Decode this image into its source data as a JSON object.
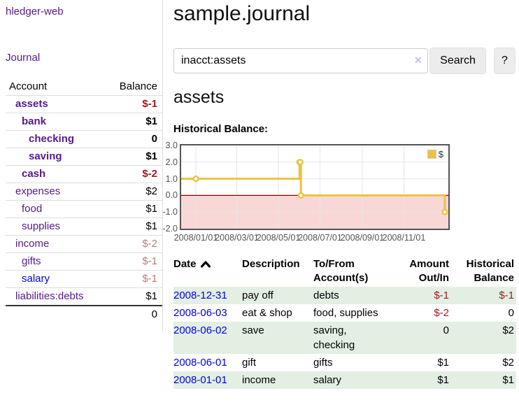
{
  "colors": {
    "link_purple": "#551a8b",
    "link_blue": "#0000ee",
    "negative_strong": "#9d1a1a",
    "negative_muted": "#b97c78",
    "row_green": "#e2efe2",
    "chart_line_gold": "#edc240"
  },
  "sidebar": {
    "brand": "hledger-web",
    "nav": {
      "journal": "Journal"
    },
    "accounts_table": {
      "headers": {
        "account": "Account",
        "balance": "Balance"
      },
      "rows": [
        {
          "name": "assets",
          "balance": "$-1",
          "depth": 1,
          "bold": true
        },
        {
          "name": "bank",
          "balance": "$1",
          "depth": 2,
          "bold": true
        },
        {
          "name": "checking",
          "balance": "0",
          "depth": 3,
          "bold": true
        },
        {
          "name": "saving",
          "balance": "$1",
          "depth": 3,
          "bold": true
        },
        {
          "name": "cash",
          "balance": "$-2",
          "depth": 2,
          "bold": true
        },
        {
          "name": "expenses",
          "balance": "$2",
          "depth": 1,
          "bold": false
        },
        {
          "name": "food",
          "balance": "$1",
          "depth": 2,
          "bold": false
        },
        {
          "name": "supplies",
          "balance": "$1",
          "depth": 2,
          "bold": false
        },
        {
          "name": "income",
          "balance": "$-2",
          "depth": 1,
          "bold": false
        },
        {
          "name": "gifts",
          "balance": "$-1",
          "depth": 2,
          "bold": false
        },
        {
          "name": "salary",
          "balance": "$-1",
          "depth": 2,
          "bold": false,
          "unvisited": true
        },
        {
          "name": "liabilities:debts",
          "balance": "$1",
          "depth": 1,
          "bold": false
        }
      ],
      "total": "0"
    }
  },
  "main": {
    "title": "sample.journal",
    "search": {
      "value": "inacct:assets",
      "clear_icon": "×",
      "search_button": "Search",
      "help_button": "?"
    },
    "account_heading": "assets",
    "chart_heading": "Historical Balance:"
  },
  "chart_data": {
    "type": "line",
    "title": "Historical Balance:",
    "step": true,
    "series": [
      {
        "name": "$",
        "color": "#edc240",
        "points": [
          [
            "2008/01/01",
            1
          ],
          [
            "2008/06/01",
            2
          ],
          [
            "2008/06/02",
            2
          ],
          [
            "2008/06/03",
            0
          ],
          [
            "2008/12/31",
            -1
          ]
        ]
      }
    ],
    "xticks": [
      "2008/01/01",
      "2008/03/01",
      "2008/05/01",
      "2008/07/01",
      "2008/09/01",
      "2008/11/01"
    ],
    "yticks": [
      3.0,
      2.0,
      1.0,
      0.0,
      -1.0,
      -2.0
    ],
    "ylim": [
      -2,
      3
    ],
    "grid": true,
    "legend_position": "top-right",
    "negative_region_color": "#f9d7d7",
    "zero_line_color": "#8b0000"
  },
  "register_table": {
    "headers": {
      "date": "Date",
      "description": "Description",
      "accounts": "To/From Account(s)",
      "amount": "Amount Out/In",
      "balance": "Historical Balance"
    },
    "sort_direction": "ascending",
    "rows": [
      {
        "date": "2008-12-31",
        "description": "pay off",
        "accounts": "debts",
        "amount": "$-1",
        "balance": "$-1"
      },
      {
        "date": "2008-06-03",
        "description": "eat & shop",
        "accounts": "food, supplies",
        "amount": "$-2",
        "balance": "0"
      },
      {
        "date": "2008-06-02",
        "description": "save",
        "accounts": "saving, checking",
        "amount": "0",
        "balance": "$2"
      },
      {
        "date": "2008-06-01",
        "description": "gift",
        "accounts": "gifts",
        "amount": "$1",
        "balance": "$2"
      },
      {
        "date": "2008-01-01",
        "description": "income",
        "accounts": "salary",
        "amount": "$1",
        "balance": "$1"
      }
    ]
  }
}
